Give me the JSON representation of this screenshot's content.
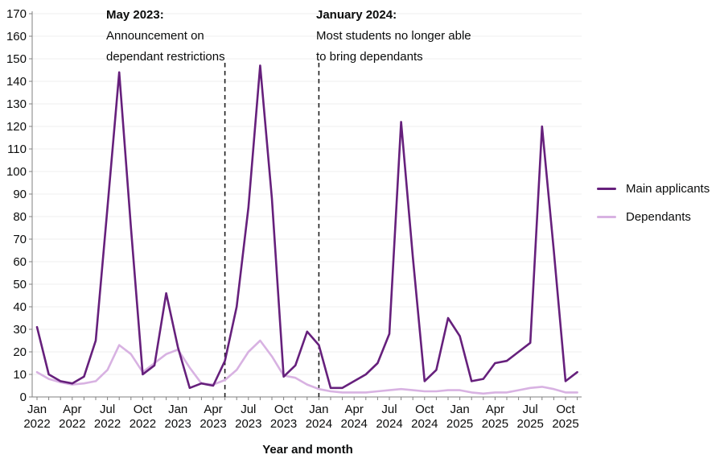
{
  "page": {
    "background": "#ffffff"
  },
  "chart_data": {
    "type": "line",
    "title": "",
    "xlabel": "Year and month",
    "ylabel": "",
    "ylim": [
      0,
      170
    ],
    "ytick_step": 10,
    "x_tick_every": 3,
    "grid": "horizontal",
    "legend_position": "right",
    "axis_color": "#808080",
    "gridline_color": "#efefef",
    "dashed_line_color": "#1d1d1d",
    "months": [
      "Jan 2022",
      "Feb 2022",
      "Mar 2022",
      "Apr 2022",
      "May 2022",
      "Jun 2022",
      "Jul 2022",
      "Aug 2022",
      "Sep 2022",
      "Oct 2022",
      "Nov 2022",
      "Dec 2022",
      "Jan 2023",
      "Feb 2023",
      "Mar 2023",
      "Apr 2023",
      "May 2023",
      "Jun 2023",
      "Jul 2023",
      "Aug 2023",
      "Sep 2023",
      "Oct 2023",
      "Nov 2023",
      "Dec 2023",
      "Jan 2024",
      "Feb 2024",
      "Mar 2024",
      "Apr 2024",
      "May 2024",
      "Jun 2024",
      "Jul 2024",
      "Aug 2024",
      "Sep 2024",
      "Oct 2024",
      "Nov 2024",
      "Dec 2024",
      "Jan 2025",
      "Feb 2025",
      "Mar 2025",
      "Apr 2025",
      "May 2025",
      "Jun 2025",
      "Jul 2025",
      "Aug 2025",
      "Sep 2025",
      "Oct 2025",
      "Nov 2025"
    ],
    "series": [
      {
        "name": "Main applicants",
        "color": "#66207c",
        "values": [
          31,
          10,
          7,
          6,
          9,
          25,
          84,
          144,
          75,
          10,
          14,
          46,
          22,
          4,
          6,
          5,
          16,
          40,
          84,
          147,
          88,
          9,
          14,
          29,
          23,
          4,
          4,
          7,
          10,
          15,
          28,
          122,
          62,
          7,
          12,
          35,
          27,
          7,
          8,
          15,
          16,
          20,
          24,
          120,
          65,
          7,
          11
        ]
      },
      {
        "name": "Dependants",
        "color": "#d8b2e2",
        "values": [
          11,
          8,
          6.5,
          5.5,
          6,
          7,
          12,
          23,
          19,
          11,
          15,
          19,
          21,
          13,
          6,
          5.5,
          7.5,
          12,
          20,
          25,
          18,
          9.5,
          8.5,
          5.5,
          3.5,
          2.5,
          2,
          2,
          2,
          2.5,
          3,
          3.5,
          3,
          2.5,
          2.5,
          3,
          3,
          2,
          1.5,
          2,
          2,
          3,
          4,
          4.5,
          3.5,
          2,
          2
        ]
      }
    ],
    "annotations": [
      {
        "heading": "May 2023:",
        "lines": [
          "Announcement on",
          "dependant restrictions"
        ],
        "month": "May 2023"
      },
      {
        "heading": "January 2024:",
        "lines": [
          "Most students no longer able",
          "to bring dependants"
        ],
        "month": "Jan 2024"
      }
    ]
  }
}
